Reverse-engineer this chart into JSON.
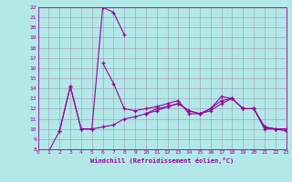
{
  "bg_color": "#b3e8e8",
  "line_color": "#990099",
  "grid_color": "#9999aa",
  "xlabel": "Windchill (Refroidissement éolien,°C)",
  "xmin": 0,
  "xmax": 23,
  "ymin": 8,
  "ymax": 22,
  "s1_x": [
    0,
    1,
    2,
    3,
    4,
    5,
    6,
    7,
    8
  ],
  "s1_y": [
    7.5,
    7.8,
    9.8,
    14.2,
    10.0,
    10.0,
    22.0,
    21.5,
    19.3
  ],
  "s2_x": [
    2,
    3,
    4,
    5,
    6,
    7,
    8,
    9,
    10,
    11,
    12,
    13,
    14,
    15,
    16,
    17,
    18,
    19,
    20,
    21,
    22,
    23
  ],
  "s2_y": [
    9.8,
    14.2,
    10.0,
    10.0,
    10.2,
    10.4,
    11.0,
    11.2,
    11.5,
    12.0,
    12.2,
    12.5,
    11.8,
    11.5,
    12.0,
    12.8,
    13.0,
    12.0,
    12.0,
    10.2,
    10.0,
    10.0
  ],
  "s3_x": [
    6,
    7,
    8,
    9,
    10,
    11,
    12,
    13,
    14,
    15,
    16,
    17,
    18,
    19,
    20,
    21,
    22,
    23
  ],
  "s3_y": [
    16.5,
    14.5,
    12.0,
    11.8,
    12.0,
    12.2,
    12.5,
    12.8,
    11.5,
    11.5,
    11.8,
    12.5,
    13.0,
    12.0,
    12.0,
    10.0,
    10.0,
    9.8
  ],
  "s4_x": [
    10,
    11,
    12,
    13,
    14,
    15,
    16,
    17,
    18,
    19,
    20,
    21,
    22,
    23
  ],
  "s4_y": [
    11.5,
    11.8,
    12.2,
    12.5,
    11.8,
    11.5,
    12.0,
    13.2,
    13.0,
    12.0,
    12.0,
    10.2,
    10.0,
    10.0
  ]
}
